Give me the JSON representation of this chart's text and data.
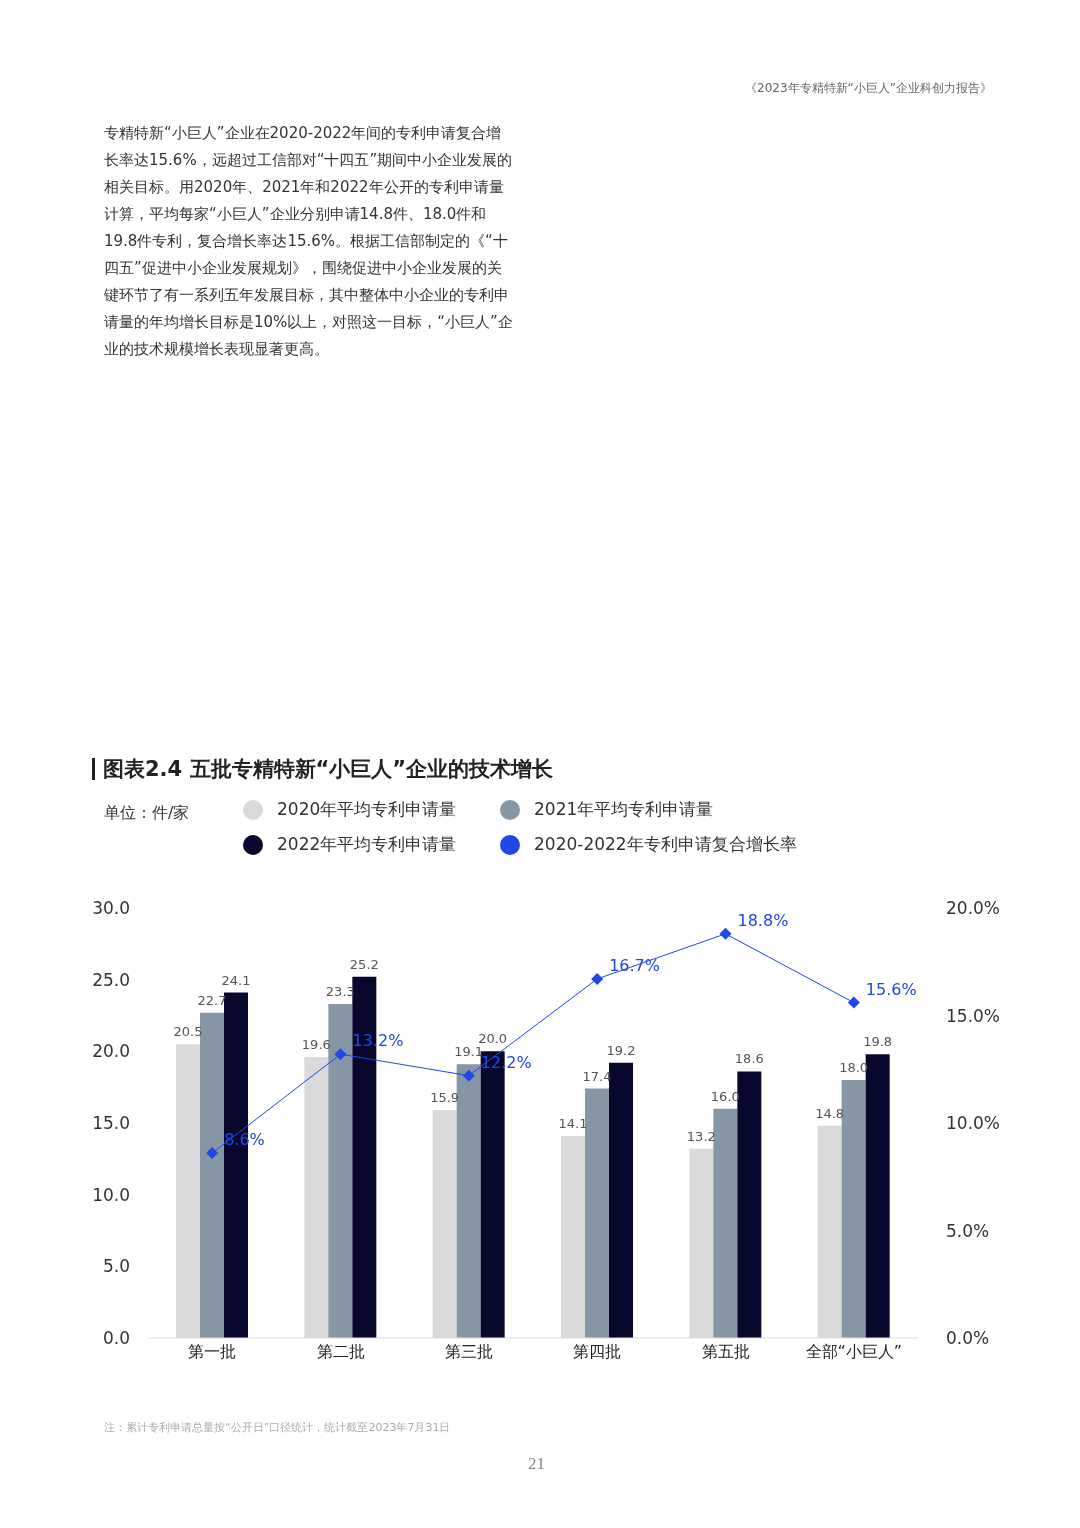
{
  "chart_data": {
    "type": "bar",
    "title": "图表2.4 五批专精特新“小巨人”企业的技术增长",
    "annotations": [
      "《2023年专精特新“小巨人”企业科创力报告》",
      "专精特新“小巨人”企业在2020-2022年间的专利申请复合增长率达15.6%，远超过工信部对“十四五”期间中小企业发展的相关目标。用2020年、2021年和2022年公开的专利申请量计算，平均每家“小巨人”企业分别申请14.8件、18.0件和19.8件专利，复合增长率达15.6%。根据工信部制定的《“十四五”促进中小企业发展规划》，围绕促进中小企业发展的关键环节了有一系列五年发展目标，其中整体中小企业的专利申请量的年均增长目标是10%以上，对照这一目标，“小巨人”企业的技术规模增长表现显著更高。",
      "单位：件/家",
      "注：累计专利申请总量按“公开日”口径统计，统计截至2023年7月31日",
      "21"
    ],
    "categories": [
      "第一批",
      "第二批",
      "第三批",
      "第四批",
      "第五批",
      "全部“小巨人”"
    ],
    "series": [
      {
        "name": "2020年平均专利申请量",
        "color": "#d9d9d9",
        "values": [
          20.5,
          19.6,
          15.9,
          14.1,
          13.2,
          14.8
        ],
        "value_labels": [
          "20.5",
          "19.6",
          "15.9",
          "14.1",
          "13.2",
          "14.8"
        ]
      },
      {
        "name": "2021年平均专利申请量",
        "color": "#8696a5",
        "values": [
          22.7,
          23.3,
          19.1,
          17.4,
          16.0,
          18.0
        ],
        "value_labels": [
          "22.7",
          "23.3",
          "19.1",
          "17.4",
          "16.0",
          "18.0"
        ]
      },
      {
        "name": "2022年平均专利申请量",
        "color": "#08082e",
        "values": [
          24.1,
          25.2,
          20.0,
          19.2,
          18.6,
          19.8
        ],
        "value_labels": [
          "24.1",
          "25.2",
          "20.0",
          "19.2",
          "18.6",
          "19.8"
        ]
      },
      {
        "name": "2020-2022年专利申请复合增长率",
        "type": "line",
        "axis": "y2",
        "color": "#1f48e6",
        "marker": "diamond",
        "line_style": "solid",
        "values": [
          8.6,
          13.2,
          12.2,
          16.7,
          18.8,
          15.6
        ],
        "value_labels": [
          "8.6%",
          "13.2%",
          "12.2%",
          "16.7%",
          "18.8%",
          "15.6%"
        ]
      }
    ],
    "ylim": [
      0,
      30
    ],
    "yticks": [
      {
        "value": 0,
        "label": "0.0"
      },
      {
        "value": 5,
        "label": "5.0"
      },
      {
        "value": 10,
        "label": "10.0"
      },
      {
        "value": 15,
        "label": "15.0"
      },
      {
        "value": 20,
        "label": "20.0"
      },
      {
        "value": 25,
        "label": "25.0"
      },
      {
        "value": 30,
        "label": "30.0"
      }
    ],
    "y2lim": [
      0,
      20
    ],
    "y2ticks": [
      {
        "value": 0,
        "label": "0.0%"
      },
      {
        "value": 5,
        "label": "5.0%"
      },
      {
        "value": 10,
        "label": "10.0%"
      },
      {
        "value": 15,
        "label": "15.0%"
      },
      {
        "value": 20,
        "label": "20.0%"
      }
    ],
    "legend": "top"
  }
}
